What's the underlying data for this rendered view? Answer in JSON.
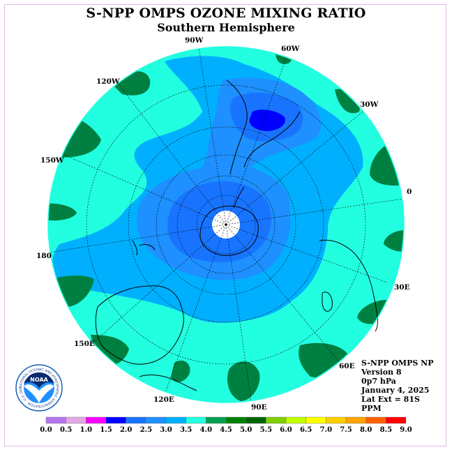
{
  "title": "S-NPP OMPS OZONE MIXING RATIO",
  "subtitle": "Southern Hemisphere",
  "longitude_labels": [
    "90W",
    "60W",
    "30W",
    "0",
    "30E",
    "60E",
    "90E",
    "120E",
    "150E",
    "180",
    "150W",
    "120W"
  ],
  "info": {
    "instrument": "S-NPP OMPS NP",
    "version": "Version 8",
    "level": "0p7 hPa",
    "date": "January 4, 2025",
    "lat_ext": "Lat Ext = 81S",
    "units": "PPM"
  },
  "logo": {
    "name": "NOAA",
    "ring_text": "NATIONAL OCEANIC AND ATMOSPHERIC ADMINISTRATION · U.S. DEPARTMENT OF COMMERCE"
  },
  "colorbar": {
    "tick_labels": [
      "0.0",
      "0.5",
      "1.0",
      "1.5",
      "2.0",
      "2.5",
      "3.0",
      "3.5",
      "4.0",
      "4.5",
      "5.0",
      "5.5",
      "6.0",
      "6.5",
      "7.0",
      "7.5",
      "8.0",
      "8.5",
      "9.0"
    ],
    "colors": [
      "#b477ee",
      "#e4a8e4",
      "#ff00ff",
      "#0000ff",
      "#1874ff",
      "#1e90ff",
      "#00b0ff",
      "#22ffe0",
      "#00a050",
      "#008000",
      "#006400",
      "#80d000",
      "#c0ff00",
      "#ffff00",
      "#ffd000",
      "#ffa500",
      "#ff6000",
      "#ff0000",
      "#a0522d"
    ]
  },
  "colors": {
    "band_3_5_4_0": "#22ffe0",
    "band_3_0_3_5": "#00b0ff",
    "band_2_5_3_0": "#1e90ff",
    "band_2_0_2_5": "#1874ff",
    "band_1_5_2_0": "#0000ff",
    "band_4_0_4_5": "#008040"
  }
}
